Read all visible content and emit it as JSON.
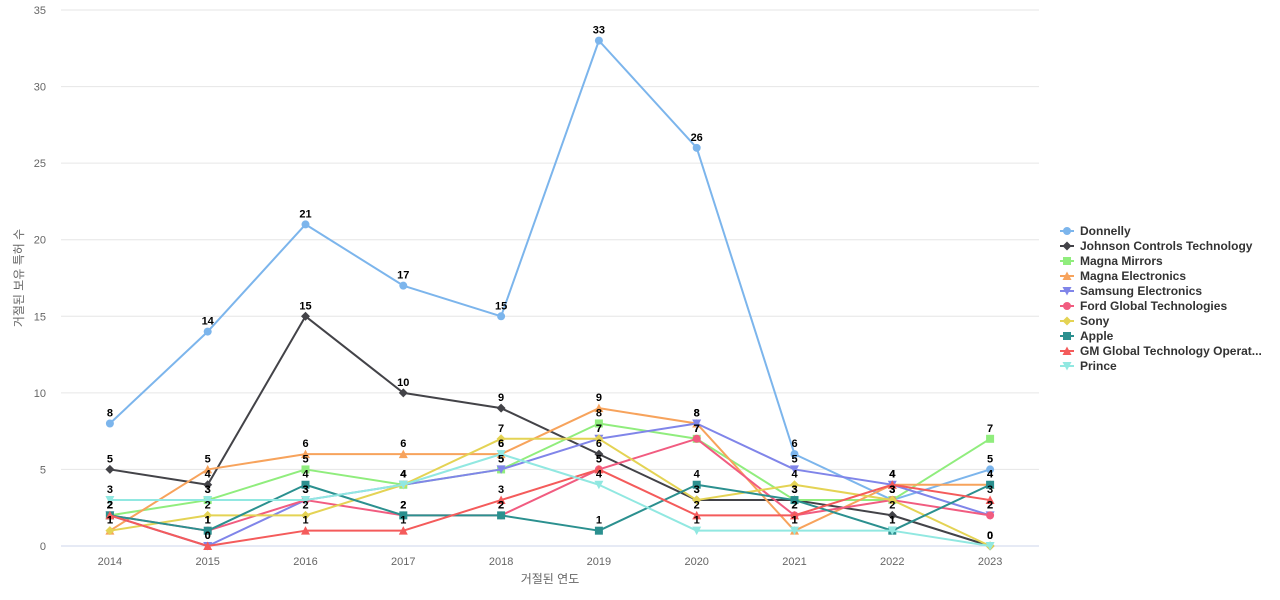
{
  "chart_data": {
    "type": "line",
    "title": "",
    "xlabel": "거절된 연도",
    "ylabel": "거절된 보유 특허 수",
    "x": [
      "2014",
      "2015",
      "2016",
      "2017",
      "2018",
      "2019",
      "2020",
      "2021",
      "2022",
      "2023"
    ],
    "ylim": [
      0,
      35
    ],
    "yticks": [
      0,
      5,
      10,
      15,
      20,
      25,
      30,
      35
    ],
    "grid": true,
    "legend_position": "right",
    "series": [
      {
        "name": "Donnelly",
        "color": "#7cb5ec",
        "marker": "circle",
        "values": [
          8,
          14,
          21,
          17,
          15,
          33,
          26,
          6,
          3,
          5
        ]
      },
      {
        "name": "Johnson Controls Technology",
        "color": "#434348",
        "marker": "diamond",
        "values": [
          5,
          4,
          15,
          10,
          9,
          6,
          3,
          3,
          2,
          0
        ]
      },
      {
        "name": "Magna Mirrors",
        "color": "#90ed7d",
        "marker": "square",
        "values": [
          2,
          3,
          5,
          4,
          5,
          8,
          7,
          3,
          3,
          7
        ]
      },
      {
        "name": "Magna Electronics",
        "color": "#f7a35c",
        "marker": "triangle",
        "values": [
          1,
          5,
          6,
          6,
          6,
          9,
          8,
          1,
          4,
          4
        ]
      },
      {
        "name": "Samsung Electronics",
        "color": "#8085e9",
        "marker": "triangle-down",
        "values": [
          2,
          0,
          3,
          4,
          5,
          7,
          8,
          5,
          4,
          2
        ]
      },
      {
        "name": "Ford Global Technologies",
        "color": "#f15c80",
        "marker": "circle",
        "values": [
          2,
          1,
          3,
          2,
          2,
          5,
          7,
          2,
          3,
          2
        ]
      },
      {
        "name": "Sony",
        "color": "#e4d354",
        "marker": "diamond",
        "values": [
          1,
          2,
          2,
          4,
          7,
          7,
          3,
          4,
          3,
          0
        ]
      },
      {
        "name": "Apple",
        "color": "#2b908f",
        "marker": "square",
        "values": [
          2,
          1,
          4,
          2,
          2,
          1,
          4,
          3,
          1,
          4
        ]
      },
      {
        "name": "GM Global Technology Operat...",
        "color": "#f45b5b",
        "marker": "triangle",
        "values": [
          2,
          0,
          1,
          1,
          3,
          5,
          2,
          2,
          4,
          3
        ]
      },
      {
        "name": "Prince",
        "color": "#91e8e1",
        "marker": "triangle-down",
        "values": [
          3,
          3,
          3,
          4,
          6,
          4,
          1,
          1,
          1,
          0
        ]
      }
    ]
  }
}
